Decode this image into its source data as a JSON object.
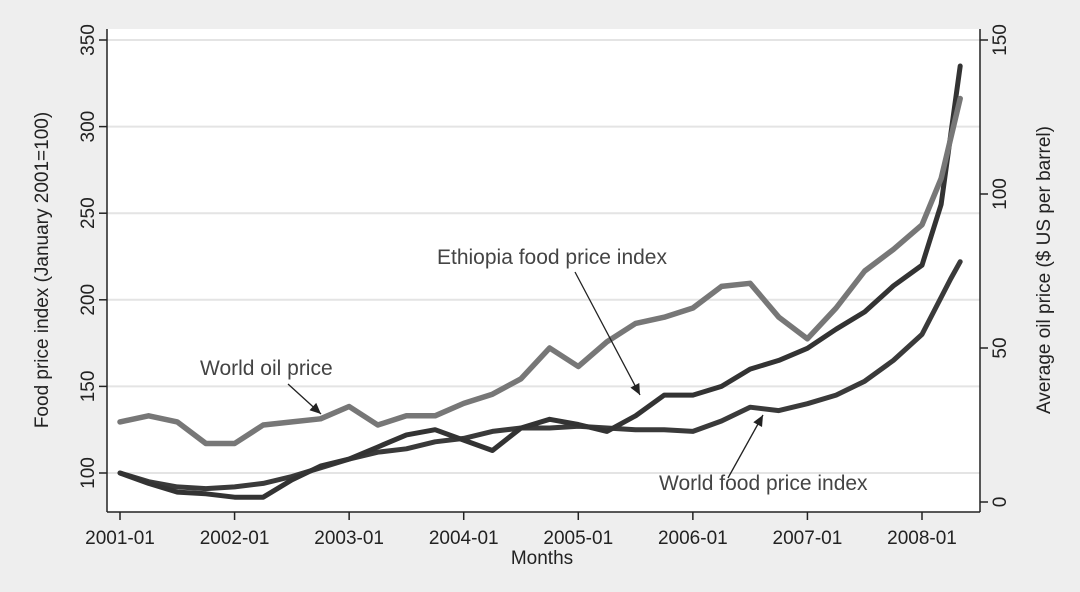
{
  "chart_data": {
    "type": "line",
    "title": "",
    "xlabel": "Months",
    "ylabel_left": "Food price index (January 2001=100)",
    "ylabel_right": "Average oil price ($ US per barrel)",
    "x_ticks": [
      "2001-01",
      "2002-01",
      "2003-01",
      "2004-01",
      "2005-01",
      "2006-01",
      "2007-01",
      "2008-01"
    ],
    "x_range": [
      "2001-01",
      "2008-05"
    ],
    "ylim_left": [
      90,
      350
    ],
    "yticks_left": [
      100,
      150,
      200,
      250,
      300,
      350
    ],
    "ylim_right": [
      -5,
      150
    ],
    "yticks_right": [
      0,
      50,
      100,
      150
    ],
    "grid": true,
    "colors": {
      "plot_bg": "#ffffff",
      "outer_bg": "#eeeeee",
      "grid": "#e4e4e4",
      "world_food": "#3a3a3a",
      "ethiopia_food": "#333333",
      "oil": "#777777",
      "axis": "#222222"
    },
    "series": [
      {
        "name": "World food price index",
        "axis": "left",
        "x": [
          "2001-01",
          "2001-04",
          "2001-07",
          "2001-10",
          "2002-01",
          "2002-04",
          "2002-07",
          "2002-10",
          "2003-01",
          "2003-04",
          "2003-07",
          "2003-10",
          "2004-01",
          "2004-04",
          "2004-07",
          "2004-10",
          "2005-01",
          "2005-04",
          "2005-07",
          "2005-10",
          "2006-01",
          "2006-04",
          "2006-07",
          "2006-10",
          "2007-01",
          "2007-04",
          "2007-07",
          "2007-10",
          "2008-01",
          "2008-04",
          "2008-05"
        ],
        "values": [
          100,
          95,
          92,
          91,
          92,
          94,
          98,
          103,
          108,
          112,
          114,
          118,
          120,
          124,
          126,
          126,
          127,
          126,
          125,
          125,
          124,
          130,
          138,
          136,
          140,
          145,
          153,
          165,
          180,
          212,
          222
        ]
      },
      {
        "name": "Ethiopia food price index",
        "axis": "left",
        "x": [
          "2001-01",
          "2001-04",
          "2001-07",
          "2001-10",
          "2002-01",
          "2002-04",
          "2002-07",
          "2002-10",
          "2003-01",
          "2003-04",
          "2003-07",
          "2003-10",
          "2004-01",
          "2004-04",
          "2004-07",
          "2004-10",
          "2005-01",
          "2005-04",
          "2005-07",
          "2005-10",
          "2006-01",
          "2006-04",
          "2006-07",
          "2006-10",
          "2007-01",
          "2007-04",
          "2007-07",
          "2007-10",
          "2008-01",
          "2008-03",
          "2008-05"
        ],
        "values": [
          100,
          94,
          89,
          88,
          86,
          86,
          96,
          104,
          108,
          115,
          122,
          125,
          119,
          113,
          126,
          131,
          128,
          124,
          133,
          145,
          145,
          150,
          160,
          165,
          172,
          183,
          193,
          208,
          220,
          255,
          335
        ]
      },
      {
        "name": "World oil price",
        "axis": "right",
        "x": [
          "2001-01",
          "2001-04",
          "2001-07",
          "2001-10",
          "2002-01",
          "2002-04",
          "2002-07",
          "2002-10",
          "2003-01",
          "2003-04",
          "2003-07",
          "2003-10",
          "2004-01",
          "2004-04",
          "2004-07",
          "2004-10",
          "2005-01",
          "2005-04",
          "2005-07",
          "2005-10",
          "2006-01",
          "2006-04",
          "2006-07",
          "2006-10",
          "2007-01",
          "2007-04",
          "2007-07",
          "2007-10",
          "2008-01",
          "2008-03",
          "2008-05"
        ],
        "values": [
          26,
          28,
          26,
          19,
          19,
          25,
          26,
          27,
          31,
          25,
          28,
          28,
          32,
          35,
          40,
          50,
          44,
          52,
          58,
          60,
          63,
          70,
          71,
          60,
          53,
          63,
          75,
          82,
          90,
          105,
          131
        ]
      }
    ],
    "annotations": [
      {
        "text": "World oil price"
      },
      {
        "text": "Ethiopia food price index"
      },
      {
        "text": "World food price index"
      }
    ]
  }
}
